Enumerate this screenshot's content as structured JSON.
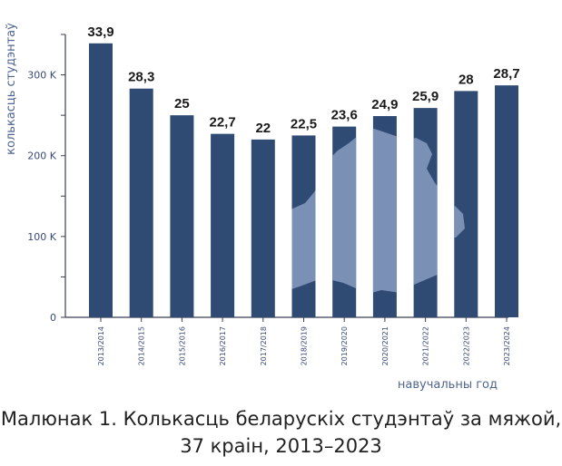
{
  "caption": {
    "line1": "Малюнак 1. Колькасць беларускіх студэнтаў за мяжой,",
    "line2": "37 краін, 2013–2023"
  },
  "chart_data": {
    "type": "bar",
    "ylabel": "колькасць студэнтаў",
    "xlabel": "навучальны год",
    "ylim": [
      0,
      350000
    ],
    "yticks": [
      {
        "value": 0,
        "label": "0"
      },
      {
        "value": 100000,
        "label": "100 K"
      },
      {
        "value": 200000,
        "label": "200 K"
      },
      {
        "value": 300000,
        "label": "300 K"
      }
    ],
    "categories": [
      "2013/2014",
      "2014/2015",
      "2015/2016",
      "2016/2017",
      "2017/2018",
      "2018/2019",
      "2019/2020",
      "2020/2021",
      "2021/2022",
      "2022/2023",
      "2023/2024"
    ],
    "values": [
      339000,
      283000,
      250000,
      227000,
      220000,
      225000,
      236000,
      249000,
      259000,
      280000,
      287000
    ],
    "data_labels": [
      "33,9",
      "28,3",
      "25",
      "22,7",
      "22",
      "22,5",
      "23,6",
      "24,9",
      "25,9",
      "28",
      "28,7"
    ],
    "grid": false,
    "colors": {
      "bar": "#2f4a73",
      "map": "#7f93b8",
      "axis": "#3a3f55",
      "tick_text": "#3a4a78",
      "axis_label": "#4f6591",
      "data_label": "#1a1a1a"
    }
  }
}
